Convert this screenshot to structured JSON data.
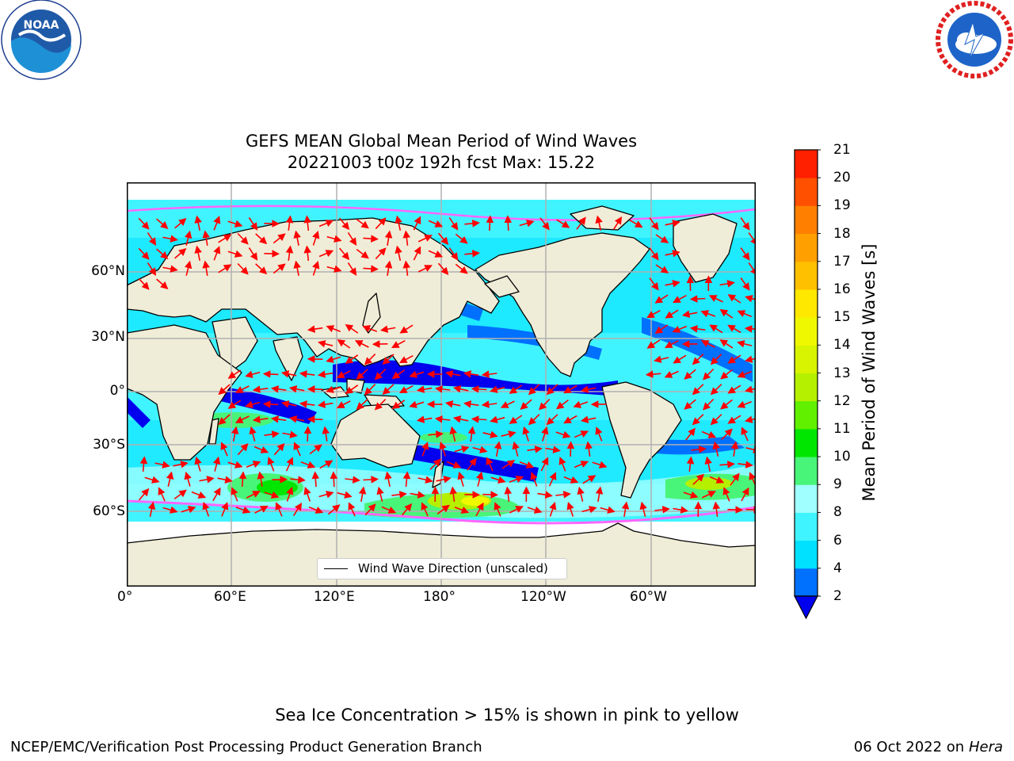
{
  "header": {
    "title_line1": "GEFS MEAN Global Mean Period of Wind Waves",
    "title_line2": "20221003 t00z 192h fcst   Max: 15.22"
  },
  "logos": {
    "left": "NOAA",
    "left_ring_text": "NATIONAL OCEANIC AND ATMOSPHERIC ADMINISTRATION · U.S. DEPARTMENT OF COMMERCE",
    "right_ring_text": "NATIONAL WEATHER SERVICE"
  },
  "map": {
    "lat_labels": [
      "60°N",
      "30°N",
      "0°",
      "30°S",
      "60°S"
    ],
    "lon_labels": [
      "0°",
      "60°E",
      "120°E",
      "180°",
      "120°W",
      "60°W"
    ],
    "legend_label": "Wind Wave Direction (unscaled)",
    "colors": {
      "land": "#efedd8",
      "ice": "#ffffff",
      "vector": "#ff0000",
      "grid": "#b0b0b0"
    }
  },
  "colorbar": {
    "label": "Mean Period of Wind Waves [s]",
    "ticks": [
      "21",
      "20",
      "19",
      "18",
      "17",
      "16",
      "15",
      "14",
      "13",
      "12",
      "11",
      "10",
      "9",
      "8",
      "6",
      "4",
      "2"
    ],
    "levels": [
      2,
      4,
      6,
      8,
      9,
      10,
      11,
      12,
      13,
      14,
      15,
      16,
      17,
      18,
      19,
      20,
      21
    ],
    "colors": [
      "#0070ff",
      "#00e0ff",
      "#40f4ff",
      "#a0ffff",
      "#48f578",
      "#00e600",
      "#60f000",
      "#b4f000",
      "#d8f400",
      "#f0f800",
      "#ffe800",
      "#ffc000",
      "#ffa000",
      "#ff8000",
      "#ff5000",
      "#ff2000"
    ],
    "under_color": "#0000ee"
  },
  "footer": {
    "note": "Sea Ice Concentration > 15% is shown in pink to yellow",
    "left": "NCEP/EMC/Verification Post Processing Product Generation Branch",
    "right_prefix": "06 Oct 2022 on ",
    "right_host": "Hera"
  }
}
